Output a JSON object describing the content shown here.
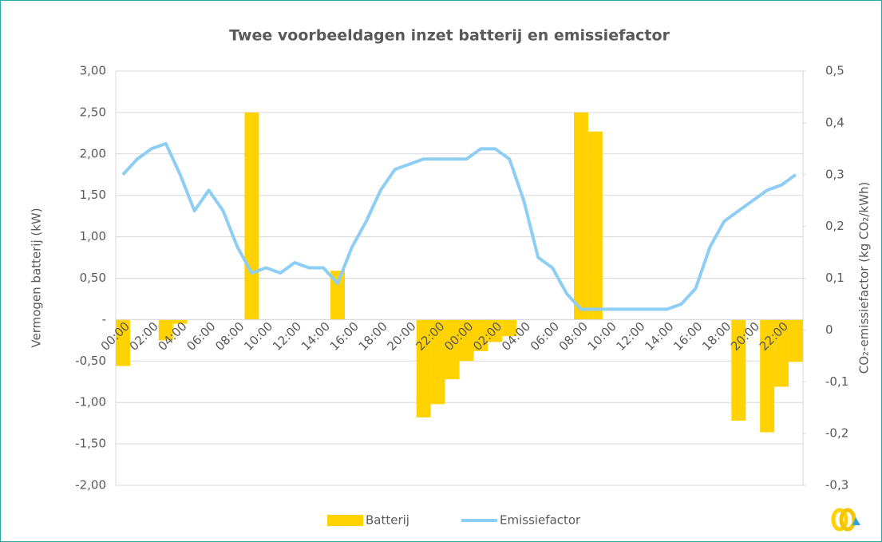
{
  "chart_data": {
    "type": "bar-line",
    "title": "Twee voorbeeldagen inzet batterij en emissiefactor",
    "y_label": "Vermogen batterij (kW)",
    "y2_label": "CO₂-emissiefactor (kg CO₂/kWh)",
    "categories": [
      "00:00",
      null,
      "02:00",
      null,
      "04:00",
      null,
      "06:00",
      null,
      "08:00",
      null,
      "10:00",
      null,
      "12:00",
      null,
      "14:00",
      null,
      "16:00",
      null,
      "18:00",
      null,
      "20:00",
      null,
      "22:00",
      null,
      "00:00",
      null,
      "02:00",
      null,
      "04:00",
      null,
      "06:00",
      null,
      "08:00",
      null,
      "10:00",
      null,
      "12:00",
      null,
      "14:00",
      null,
      "16:00",
      null,
      "18:00",
      null,
      "20:00",
      null,
      "22:00",
      null
    ],
    "series": [
      {
        "name": "Batterij",
        "type": "bar",
        "color": "#ffd200",
        "values": [
          -0.56,
          null,
          null,
          -0.25,
          -0.05,
          null,
          null,
          null,
          null,
          2.5,
          null,
          null,
          null,
          null,
          null,
          0.59,
          null,
          null,
          null,
          null,
          null,
          -1.18,
          -1.02,
          -0.72,
          -0.5,
          -0.38,
          -0.27,
          -0.2,
          null,
          null,
          null,
          null,
          2.5,
          2.27,
          null,
          null,
          null,
          null,
          null,
          null,
          null,
          null,
          null,
          -1.22,
          null,
          -1.36,
          -0.81,
          -0.51
        ]
      },
      {
        "name": "Emissiefactor",
        "type": "line",
        "axis": "y2",
        "color": "#8ecdf4",
        "values": [
          0.3,
          0.33,
          0.35,
          0.36,
          0.3,
          0.23,
          0.27,
          0.23,
          0.16,
          0.11,
          0.12,
          0.11,
          0.13,
          0.12,
          0.12,
          0.09,
          0.16,
          0.21,
          0.27,
          0.31,
          0.32,
          0.33,
          0.33,
          0.33,
          0.33,
          0.35,
          0.35,
          0.33,
          0.25,
          0.14,
          0.12,
          0.07,
          0.04,
          0.04,
          0.04,
          0.04,
          0.04,
          0.04,
          0.04,
          0.05,
          0.08,
          0.16,
          0.21,
          0.23,
          0.25,
          0.27,
          0.28,
          0.3
        ]
      }
    ],
    "ylim": [
      -2,
      3
    ],
    "yticks": [
      {
        "value": 3,
        "label": "3,00"
      },
      {
        "value": 2.5,
        "label": "2,50"
      },
      {
        "value": 2,
        "label": "2,00"
      },
      {
        "value": 1.5,
        "label": "1,50"
      },
      {
        "value": 1,
        "label": "1,00"
      },
      {
        "value": 0.5,
        "label": "0,50"
      },
      {
        "value": 0,
        "label": "-"
      },
      {
        "value": -0.5,
        "label": "-0,50"
      },
      {
        "value": -1,
        "label": "-1,00"
      },
      {
        "value": -1.5,
        "label": "-1,50"
      },
      {
        "value": -2,
        "label": "-2,00"
      }
    ],
    "y2lim": [
      -0.3,
      0.5
    ],
    "y2ticks": [
      {
        "value": 0.5,
        "label": "0,5"
      },
      {
        "value": 0.4,
        "label": "0,4"
      },
      {
        "value": 0.3,
        "label": "0,3"
      },
      {
        "value": 0.2,
        "label": "0,2"
      },
      {
        "value": 0.1,
        "label": "0,1"
      },
      0,
      {
        "value": -0.1,
        "label": "-0,1"
      },
      {
        "value": -0.2,
        "label": "-0,2"
      },
      {
        "value": -0.3,
        "label": "-0,3"
      }
    ],
    "grid": true,
    "legend": "bottom"
  }
}
